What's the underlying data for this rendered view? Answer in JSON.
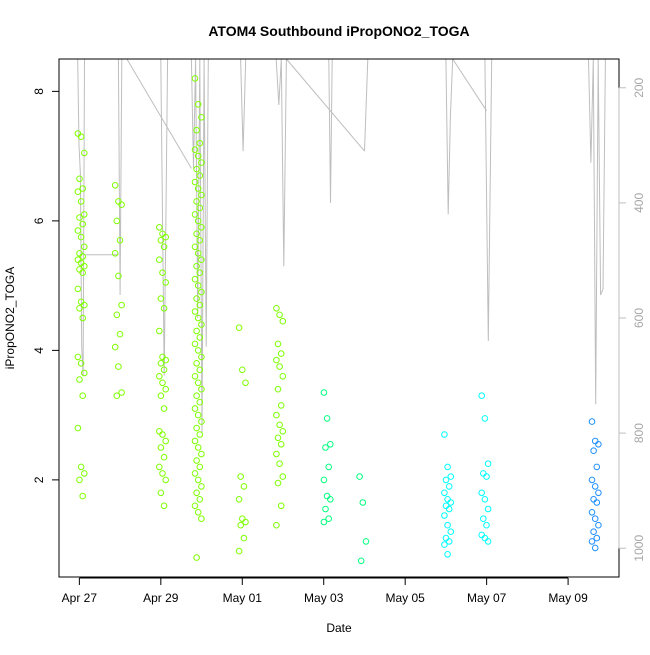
{
  "chart_data": {
    "type": "scatter",
    "title": "ATOM4 Southbound iPropONO2_TOGA",
    "xlabel": "Date",
    "ylabel": "iPropONO2_TOGA",
    "xlim": [
      "2018-04-26T12:00",
      "2018-05-10T06:00"
    ],
    "ylim": [
      0.5,
      8.5
    ],
    "y2lim_reversed": [
      1050,
      150
    ],
    "grid": false,
    "legend": "none",
    "x_ticks": [
      {
        "label": "Apr 27",
        "date": "2018-04-27"
      },
      {
        "label": "Apr 29",
        "date": "2018-04-29"
      },
      {
        "label": "May 01",
        "date": "2018-05-01"
      },
      {
        "label": "May 03",
        "date": "2018-05-03"
      },
      {
        "label": "May 05",
        "date": "2018-05-05"
      },
      {
        "label": "May 07",
        "date": "2018-05-07"
      },
      {
        "label": "May 09",
        "date": "2018-05-09"
      }
    ],
    "y_ticks": [
      {
        "label": "2",
        "value": 2
      },
      {
        "label": "4",
        "value": 4
      },
      {
        "label": "6",
        "value": 6
      },
      {
        "label": "8",
        "value": 8
      }
    ],
    "y2_ticks": [
      {
        "label": "200",
        "value": 200
      },
      {
        "label": "400",
        "value": 400
      },
      {
        "label": "600",
        "value": 600
      },
      {
        "label": "800",
        "value": 800
      },
      {
        "label": "1000",
        "value": 1000
      }
    ],
    "colors": {
      "early": "#7fff00",
      "mid": "#00ff7f",
      "late": "#00bfff",
      "last": "#1e90ff",
      "pressure": "#bebebe"
    },
    "clusters": [
      {
        "t": "2018-04-27T01:00",
        "color": "#7fff00",
        "y": [
          7.35,
          7.3,
          7.05,
          6.65,
          6.5,
          6.45,
          6.3,
          6.1,
          6.05,
          5.95,
          5.85,
          5.75,
          5.6,
          5.5,
          5.45,
          5.4,
          5.35,
          5.3,
          5.25,
          5.2,
          4.95,
          4.75,
          4.7,
          4.65,
          4.5,
          3.9,
          3.8,
          3.65,
          3.55,
          3.3,
          2.8,
          2.2,
          2.1,
          2.0,
          1.75
        ]
      },
      {
        "t": "2018-04-27T23:00",
        "color": "#7fff00",
        "y": [
          6.55,
          6.3,
          6.25,
          6.0,
          5.7,
          5.5,
          5.15,
          4.7,
          4.55,
          4.25,
          4.05,
          3.75,
          3.35,
          3.3
        ]
      },
      {
        "t": "2018-04-29T01:00",
        "color": "#7fff00",
        "y": [
          5.9,
          5.8,
          5.75,
          5.7,
          5.6,
          5.4,
          5.2,
          5.05,
          4.8,
          4.65,
          4.3,
          3.9,
          3.85,
          3.8,
          3.7,
          3.6,
          3.5,
          3.4,
          3.3,
          3.1,
          2.75,
          2.7,
          2.6,
          2.5,
          2.35,
          2.2,
          2.1,
          2.0,
          1.8,
          1.6
        ]
      },
      {
        "t": "2018-04-29T22:00",
        "color": "#7fff00",
        "y": [
          8.2,
          7.8,
          7.6,
          7.4,
          7.2,
          7.1,
          7.0,
          6.9,
          6.8,
          6.7,
          6.6,
          6.5,
          6.4,
          6.3,
          6.2,
          6.1,
          6.0,
          5.9,
          5.8,
          5.7,
          5.6,
          5.5,
          5.4,
          5.3,
          5.2,
          5.1,
          5.0,
          4.9,
          4.8,
          4.7,
          4.6,
          4.5,
          4.4,
          4.3,
          4.2,
          4.1,
          4.0,
          3.9,
          3.8,
          3.7,
          3.6,
          3.5,
          3.4,
          3.3,
          3.2,
          3.1,
          3.0,
          2.9,
          2.8,
          2.7,
          2.6,
          2.5,
          2.4,
          2.3,
          2.2,
          2.1,
          2.0,
          1.9,
          1.8,
          1.7,
          1.6,
          1.5,
          1.4,
          0.8
        ]
      },
      {
        "t": "2018-05-01T00:00",
        "color": "#7fff00",
        "y": [
          4.35,
          3.7,
          3.5,
          2.05,
          1.9,
          1.7,
          1.4,
          1.35,
          1.3,
          1.1,
          0.9
        ]
      },
      {
        "t": "2018-05-01T22:00",
        "color": "#7fff00",
        "y": [
          4.65,
          4.55,
          4.45,
          4.1,
          3.95,
          3.85,
          3.75,
          3.6,
          3.4,
          3.15,
          3.0,
          2.85,
          2.75,
          2.65,
          2.55,
          2.4,
          2.25,
          2.05,
          1.95,
          1.6,
          1.3
        ]
      },
      {
        "t": "2018-05-03T02:00",
        "color": "#00ff7f",
        "y": [
          3.35,
          2.95,
          2.55,
          2.5,
          2.2,
          2.0,
          1.75,
          1.7,
          1.55,
          1.4,
          1.35
        ]
      },
      {
        "t": "2018-05-03T23:00",
        "color": "#00ff7f",
        "y": [
          2.05,
          1.65,
          1.05,
          0.75
        ]
      },
      {
        "t": "2018-05-06T01:00",
        "color": "#00ffff",
        "y": [
          2.7,
          2.2,
          2.05,
          2.0,
          1.9,
          1.8,
          1.7,
          1.65,
          1.6,
          1.55,
          1.45,
          1.3,
          1.2,
          1.1,
          1.05,
          1.0,
          0.85
        ]
      },
      {
        "t": "2018-05-06T23:00",
        "color": "#00ffff",
        "y": [
          3.3,
          2.95,
          2.25,
          2.1,
          2.05,
          1.8,
          1.7,
          1.55,
          1.4,
          1.3,
          1.15,
          1.1,
          1.05
        ]
      },
      {
        "t": "2018-05-09T16:00",
        "color": "#1e90ff",
        "y": [
          2.9,
          2.6,
          2.55,
          2.45,
          2.2,
          2.0,
          1.9,
          1.8,
          1.7,
          1.65,
          1.5,
          1.4,
          1.3,
          1.2,
          1.1,
          1.05,
          0.95
        ]
      }
    ],
    "pressure_segments": [
      {
        "t0": "2018-04-26T23:00",
        "t1": "2018-04-27T03:00",
        "p": [
          150,
          300,
          350,
          650,
          700,
          150
        ]
      },
      {
        "t0": "2018-04-27T03:00",
        "t1": "2018-04-27T23:00",
        "p": [
          490,
          490
        ]
      },
      {
        "t0": "2018-04-27T23:00",
        "t1": "2018-04-28T01:00",
        "p": [
          150,
          560,
          150
        ]
      },
      {
        "t0": "2018-04-28T04:00",
        "t1": "2018-04-29T18:00",
        "p": [
          150,
          340
        ]
      },
      {
        "t0": "2018-04-29T00:00",
        "t1": "2018-04-29T04:00",
        "p": [
          150,
          700,
          150
        ]
      },
      {
        "t0": "2018-04-29T18:00",
        "t1": "2018-04-30T04:00",
        "p": [
          150,
          340,
          150,
          600,
          150,
          800,
          150,
          650,
          150
        ]
      },
      {
        "t0": "2018-04-30T23:00",
        "t1": "2018-05-01T02:00",
        "p": [
          150,
          310,
          150
        ]
      },
      {
        "t0": "2018-05-01T20:00",
        "t1": "2018-05-02T02:00",
        "p": [
          150,
          230,
          150,
          510,
          150
        ]
      },
      {
        "t0": "2018-05-02T02:00",
        "t1": "2018-05-04T00:00",
        "p": [
          150,
          310
        ]
      },
      {
        "t0": "2018-05-03T03:00",
        "t1": "2018-05-03T05:00",
        "p": [
          150,
          400,
          150
        ]
      },
      {
        "t0": "2018-05-04T00:00",
        "t1": "2018-05-04T02:00",
        "p": [
          310,
          150
        ]
      },
      {
        "t0": "2018-05-06T00:00",
        "t1": "2018-05-06T04:00",
        "p": [
          150,
          420,
          250,
          150
        ]
      },
      {
        "t0": "2018-05-06T04:00",
        "t1": "2018-05-07T00:00",
        "p": [
          150,
          240
        ]
      },
      {
        "t0": "2018-05-06T23:00",
        "t1": "2018-05-07T03:00",
        "p": [
          150,
          640,
          150
        ]
      },
      {
        "t0": "2018-05-09T12:00",
        "t1": "2018-05-09T22:00",
        "p": [
          150,
          330,
          150,
          750,
          150,
          560,
          550,
          150
        ]
      }
    ]
  }
}
